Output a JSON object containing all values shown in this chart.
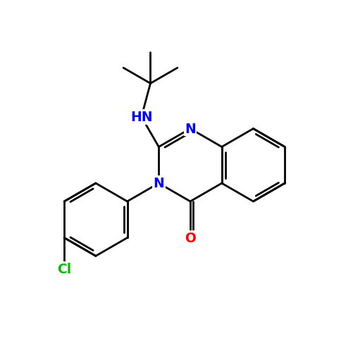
{
  "background_color": "#ffffff",
  "bond_color": "#000000",
  "bond_width": 2.0,
  "atom_colors": {
    "N": "#0000ff",
    "O": "#ff0000",
    "Cl": "#00bb00",
    "C": "#000000"
  },
  "font_size": 13.5
}
